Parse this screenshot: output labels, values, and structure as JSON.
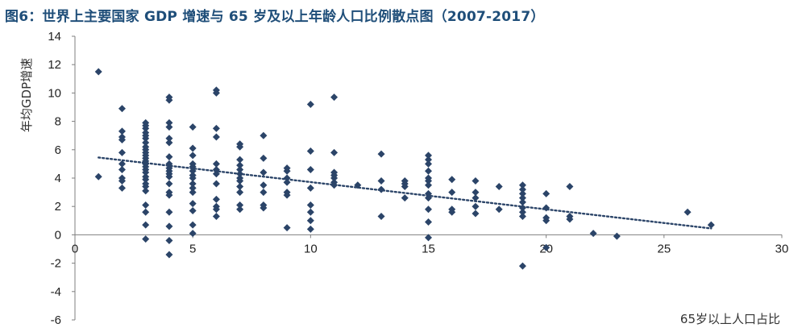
{
  "chart_data": {
    "type": "scatter",
    "title": "图6：世界上主要国家 GDP 增速与 65 岁及以上年龄人口比例散点图（2007-2017）",
    "xlabel": "65岁以上人口占比",
    "ylabel": "年均GDP增速",
    "xlim": [
      0,
      30
    ],
    "ylim": [
      -6,
      14
    ],
    "xticks": [
      "0",
      "5",
      "10",
      "15",
      "20",
      "25",
      "30"
    ],
    "yticks": [
      "14",
      "12",
      "10",
      "8",
      "6",
      "4",
      "2",
      "0",
      "-2",
      "-4",
      "-6"
    ],
    "grid": false,
    "legend": "none",
    "marker_color": "#2b4468",
    "trendline": {
      "style": "dotted",
      "color": "#2b4468",
      "x": [
        1,
        27
      ],
      "y": [
        5.45,
        0.45
      ]
    },
    "points": [
      [
        1,
        11.5
      ],
      [
        1,
        4.1
      ],
      [
        2,
        8.9
      ],
      [
        2,
        7.3
      ],
      [
        2,
        6.9
      ],
      [
        2,
        6.7
      ],
      [
        2,
        5.8
      ],
      [
        2,
        5.0
      ],
      [
        2,
        4.6
      ],
      [
        2,
        4.0
      ],
      [
        2,
        3.8
      ],
      [
        2,
        3.3
      ],
      [
        3,
        7.9
      ],
      [
        3,
        7.7
      ],
      [
        3,
        7.5
      ],
      [
        3,
        7.2
      ],
      [
        3,
        7.0
      ],
      [
        3,
        6.8
      ],
      [
        3,
        6.5
      ],
      [
        3,
        6.2
      ],
      [
        3,
        6.0
      ],
      [
        3,
        5.8
      ],
      [
        3,
        5.6
      ],
      [
        3,
        5.4
      ],
      [
        3,
        5.2
      ],
      [
        3,
        5.0
      ],
      [
        3,
        4.8
      ],
      [
        3,
        4.6
      ],
      [
        3,
        4.4
      ],
      [
        3,
        4.1
      ],
      [
        3,
        3.9
      ],
      [
        3,
        3.6
      ],
      [
        3,
        3.4
      ],
      [
        3,
        3.1
      ],
      [
        3,
        2.1
      ],
      [
        3,
        1.6
      ],
      [
        3,
        0.7
      ],
      [
        3,
        -0.3
      ],
      [
        4,
        9.7
      ],
      [
        4,
        9.5
      ],
      [
        4,
        7.9
      ],
      [
        4,
        7.6
      ],
      [
        4,
        6.8
      ],
      [
        4,
        6.5
      ],
      [
        4,
        5.5
      ],
      [
        4,
        5.0
      ],
      [
        4,
        4.7
      ],
      [
        4,
        4.5
      ],
      [
        4,
        4.3
      ],
      [
        4,
        4.1
      ],
      [
        4,
        3.6
      ],
      [
        4,
        3.0
      ],
      [
        4,
        2.8
      ],
      [
        4,
        1.6
      ],
      [
        4,
        0.6
      ],
      [
        4,
        -0.4
      ],
      [
        4,
        -1.4
      ],
      [
        5,
        7.6
      ],
      [
        5,
        6.1
      ],
      [
        5,
        5.6
      ],
      [
        5,
        5.0
      ],
      [
        5,
        4.8
      ],
      [
        5,
        4.5
      ],
      [
        5,
        4.2
      ],
      [
        5,
        4.0
      ],
      [
        5,
        3.6
      ],
      [
        5,
        3.3
      ],
      [
        5,
        3.0
      ],
      [
        5,
        2.2
      ],
      [
        5,
        1.7
      ],
      [
        5,
        0.7
      ],
      [
        5,
        0.1
      ],
      [
        6,
        10.2
      ],
      [
        6,
        10.0
      ],
      [
        6,
        7.5
      ],
      [
        6,
        6.9
      ],
      [
        6,
        5.0
      ],
      [
        6,
        4.6
      ],
      [
        6,
        4.3
      ],
      [
        6,
        3.6
      ],
      [
        6,
        2.0
      ],
      [
        6,
        1.8
      ],
      [
        6,
        1.3
      ],
      [
        6,
        2.5
      ],
      [
        7,
        6.4
      ],
      [
        7,
        6.2
      ],
      [
        7,
        5.3
      ],
      [
        7,
        4.9
      ],
      [
        7,
        4.6
      ],
      [
        7,
        4.3
      ],
      [
        7,
        4.0
      ],
      [
        7,
        3.8
      ],
      [
        7,
        3.4
      ],
      [
        7,
        3.0
      ],
      [
        7,
        2.1
      ],
      [
        7,
        1.8
      ],
      [
        8,
        7.0
      ],
      [
        8,
        5.4
      ],
      [
        8,
        4.4
      ],
      [
        8,
        3.5
      ],
      [
        8,
        3.0
      ],
      [
        8,
        2.1
      ],
      [
        8,
        1.9
      ],
      [
        9,
        4.7
      ],
      [
        9,
        4.5
      ],
      [
        9,
        4.0
      ],
      [
        9,
        3.7
      ],
      [
        9,
        3.0
      ],
      [
        9,
        2.8
      ],
      [
        9,
        0.5
      ],
      [
        10,
        9.2
      ],
      [
        10,
        5.9
      ],
      [
        10,
        4.6
      ],
      [
        10,
        3.3
      ],
      [
        10,
        2.1
      ],
      [
        10,
        1.6
      ],
      [
        10,
        1.0
      ],
      [
        10,
        0.4
      ],
      [
        11,
        9.7
      ],
      [
        11,
        5.8
      ],
      [
        11,
        4.4
      ],
      [
        11,
        4.2
      ],
      [
        11,
        4.0
      ],
      [
        11,
        3.7
      ],
      [
        11,
        3.5
      ],
      [
        12,
        3.5
      ],
      [
        13,
        5.7
      ],
      [
        13,
        3.8
      ],
      [
        13,
        3.2
      ],
      [
        13,
        1.3
      ],
      [
        14,
        3.8
      ],
      [
        14,
        3.6
      ],
      [
        14,
        3.4
      ],
      [
        14,
        2.6
      ],
      [
        15,
        5.6
      ],
      [
        15,
        5.3
      ],
      [
        15,
        5.0
      ],
      [
        15,
        4.5
      ],
      [
        15,
        4.0
      ],
      [
        15,
        3.8
      ],
      [
        15,
        3.5
      ],
      [
        15,
        2.9
      ],
      [
        15,
        2.6
      ],
      [
        15,
        1.8
      ],
      [
        15,
        0.9
      ],
      [
        15,
        -0.2
      ],
      [
        16,
        3.9
      ],
      [
        16,
        3.0
      ],
      [
        16,
        1.8
      ],
      [
        16,
        1.6
      ],
      [
        17,
        3.8
      ],
      [
        17,
        3.0
      ],
      [
        17,
        2.6
      ],
      [
        17,
        2.0
      ],
      [
        17,
        1.5
      ],
      [
        18,
        3.4
      ],
      [
        18,
        1.8
      ],
      [
        19,
        3.5
      ],
      [
        19,
        3.2
      ],
      [
        19,
        2.9
      ],
      [
        19,
        2.6
      ],
      [
        19,
        2.3
      ],
      [
        19,
        1.9
      ],
      [
        19,
        1.6
      ],
      [
        19,
        1.3
      ],
      [
        19,
        -2.2
      ],
      [
        20,
        2.9
      ],
      [
        20,
        1.9
      ],
      [
        20,
        1.2
      ],
      [
        20,
        1.0
      ],
      [
        20,
        -0.9
      ],
      [
        21,
        3.4
      ],
      [
        21,
        1.3
      ],
      [
        21,
        1.1
      ],
      [
        22,
        0.1
      ],
      [
        23,
        -0.1
      ],
      [
        26,
        1.6
      ],
      [
        27,
        0.7
      ]
    ]
  }
}
